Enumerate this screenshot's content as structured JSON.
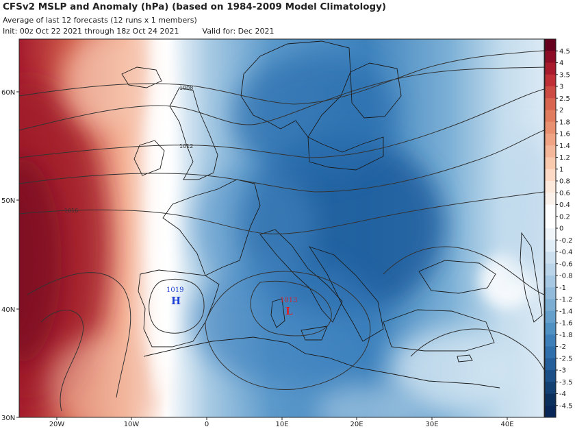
{
  "header": {
    "title": "CFSv2 MSLP and Anomaly (hPa) (based on 1984-2009 Model Climatology)",
    "subtitle": "Average of last 12 forecasts (12 runs x 1 members)",
    "init": "Init: 00z Oct 22 2021 through 18z Oct 24 2021",
    "valid": "Valid for: Dec 2021"
  },
  "axes": {
    "lat_labels": [
      "60N",
      "50N",
      "40N",
      "30N"
    ],
    "lon_labels": [
      "20W",
      "10W",
      "0",
      "10E",
      "20E",
      "30E",
      "40E"
    ]
  },
  "colorbar": {
    "labels": [
      "4.5",
      "4",
      "3.5",
      "3",
      "2.5",
      "2",
      "1.8",
      "1.6",
      "1.4",
      "1.2",
      "1",
      "0.8",
      "0.6",
      "0.4",
      "0.2",
      "0",
      "-0.2",
      "-0.4",
      "-0.6",
      "-0.8",
      "-1",
      "-1.2",
      "-1.4",
      "-1.6",
      "-1.8",
      "-2",
      "-2.5",
      "-3",
      "-3.5",
      "-4",
      "-4.5"
    ],
    "colors": [
      "#67001f",
      "#8c0d25",
      "#a81b2c",
      "#be3036",
      "#cc4c44",
      "#d8654f",
      "#e17c5e",
      "#e99070",
      "#f0a483",
      "#f5b799",
      "#f9caae",
      "#fcdac6",
      "#fde8dc",
      "#fbf2ec",
      "#ffffff",
      "#ffffff",
      "#f0f5fa",
      "#e0ecf6",
      "#cde0f0",
      "#bad4ea",
      "#a6c8e3",
      "#91badb",
      "#7badd3",
      "#65a0cc",
      "#4f91c3",
      "#3d7fb8",
      "#2f6fab",
      "#245f9b",
      "#1b4f88",
      "#134073",
      "#0c305d",
      "#082758"
    ]
  },
  "isobars": [
    "1008",
    "1012",
    "1016",
    "1019",
    "1013"
  ],
  "centers": {
    "high": {
      "pressure": "1019",
      "letter": "H",
      "color": "#1d3fd6"
    },
    "low": {
      "pressure": "1013",
      "letter": "L",
      "color": "#d6222c"
    }
  }
}
